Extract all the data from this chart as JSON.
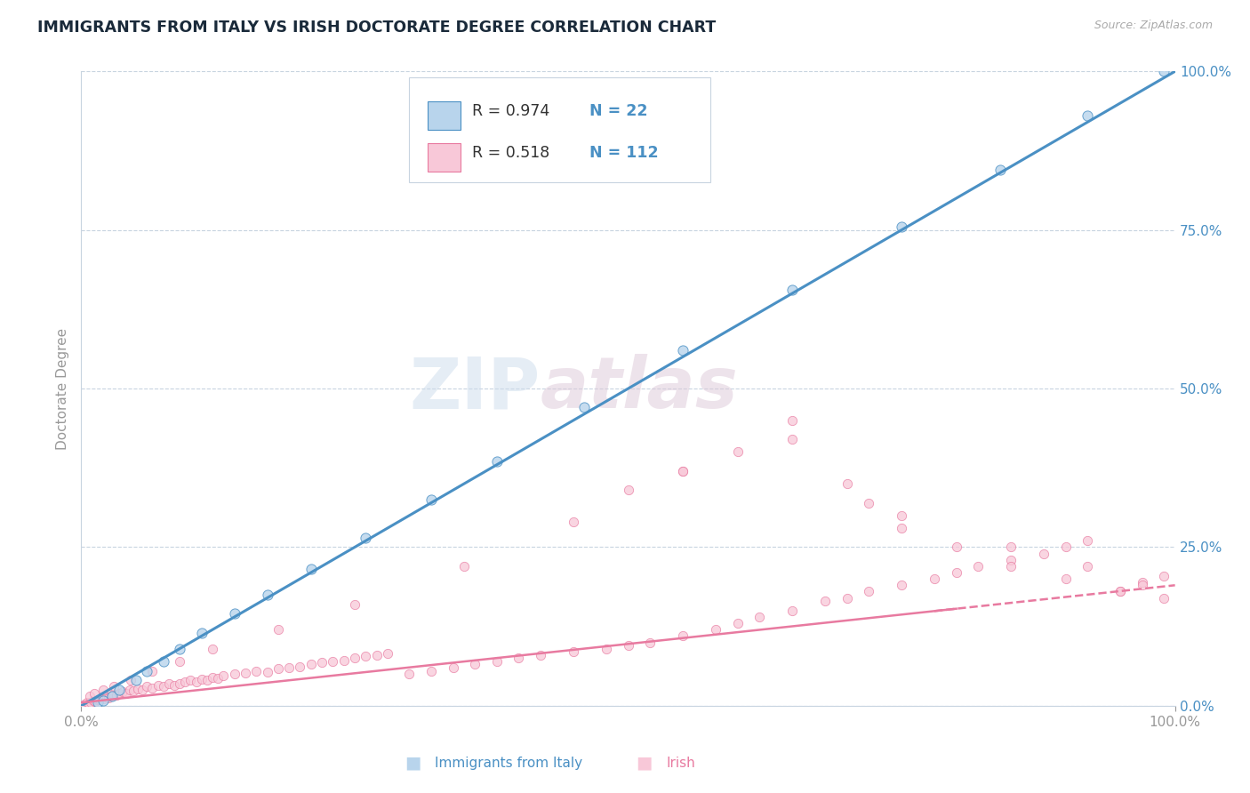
{
  "title": "IMMIGRANTS FROM ITALY VS IRISH DOCTORATE DEGREE CORRELATION CHART",
  "source_text": "Source: ZipAtlas.com",
  "xlabel_left": "Immigrants from Italy",
  "xlabel_right": "Irish",
  "ylabel": "Doctorate Degree",
  "watermark": "ZIPAtlas",
  "blue_R": 0.974,
  "blue_N": 22,
  "pink_R": 0.518,
  "pink_N": 112,
  "blue_color": "#b8d4ec",
  "blue_line_color": "#4a90c4",
  "blue_edge_color": "#4a90c4",
  "pink_color": "#f8c8d8",
  "pink_line_color": "#e87aa0",
  "pink_edge_color": "#e87aa0",
  "blue_scatter_x": [
    1.5,
    2.0,
    2.8,
    3.5,
    5.0,
    6.0,
    7.5,
    9.0,
    11.0,
    14.0,
    17.0,
    21.0,
    26.0,
    32.0,
    38.0,
    46.0,
    55.0,
    65.0,
    75.0,
    84.0,
    92.0,
    99.0
  ],
  "blue_scatter_y": [
    0.5,
    0.8,
    1.5,
    2.5,
    4.0,
    5.5,
    7.0,
    9.0,
    11.5,
    14.5,
    17.5,
    21.5,
    26.5,
    32.5,
    38.5,
    47.0,
    56.0,
    65.5,
    75.5,
    84.5,
    93.0,
    100.0
  ],
  "pink_scatter_x": [
    0.3,
    0.5,
    0.7,
    0.9,
    1.1,
    1.3,
    1.5,
    1.7,
    1.9,
    2.1,
    2.3,
    2.5,
    2.7,
    2.9,
    3.2,
    3.5,
    3.8,
    4.1,
    4.4,
    4.8,
    5.2,
    5.6,
    6.0,
    6.5,
    7.0,
    7.5,
    8.0,
    8.5,
    9.0,
    9.5,
    10.0,
    10.5,
    11.0,
    11.5,
    12.0,
    12.5,
    13.0,
    14.0,
    15.0,
    16.0,
    17.0,
    18.0,
    19.0,
    20.0,
    21.0,
    22.0,
    23.0,
    24.0,
    25.0,
    26.0,
    27.0,
    28.0,
    30.0,
    32.0,
    34.0,
    36.0,
    38.0,
    40.0,
    42.0,
    45.0,
    48.0,
    50.0,
    52.0,
    55.0,
    58.0,
    60.0,
    62.0,
    65.0,
    68.0,
    70.0,
    72.0,
    75.0,
    78.0,
    80.0,
    82.0,
    85.0,
    88.0,
    90.0,
    92.0,
    95.0,
    97.0,
    99.0,
    0.8,
    1.2,
    2.0,
    3.0,
    4.5,
    6.5,
    9.0,
    12.0,
    18.0,
    25.0,
    35.0,
    45.0,
    55.0,
    65.0,
    75.0,
    85.0,
    92.0,
    97.0,
    50.0,
    55.0,
    60.0,
    65.0,
    70.0,
    72.0,
    75.0,
    80.0,
    85.0,
    90.0,
    95.0,
    99.0
  ],
  "pink_scatter_y": [
    0.3,
    0.5,
    0.4,
    0.6,
    0.8,
    0.7,
    1.0,
    0.9,
    1.2,
    1.1,
    1.4,
    1.3,
    1.5,
    1.8,
    1.6,
    2.0,
    2.2,
    1.9,
    2.5,
    2.3,
    2.7,
    2.5,
    3.0,
    2.8,
    3.2,
    3.0,
    3.5,
    3.2,
    3.5,
    3.8,
    4.0,
    3.7,
    4.2,
    4.0,
    4.5,
    4.3,
    4.8,
    5.0,
    5.2,
    5.5,
    5.3,
    5.8,
    6.0,
    6.2,
    6.5,
    6.8,
    7.0,
    7.2,
    7.5,
    7.8,
    8.0,
    8.3,
    5.0,
    5.5,
    6.0,
    6.5,
    7.0,
    7.5,
    8.0,
    8.5,
    9.0,
    9.5,
    10.0,
    11.0,
    12.0,
    13.0,
    14.0,
    15.0,
    16.5,
    17.0,
    18.0,
    19.0,
    20.0,
    21.0,
    22.0,
    23.0,
    24.0,
    25.0,
    26.0,
    18.0,
    19.5,
    20.5,
    1.5,
    2.0,
    2.5,
    3.0,
    4.0,
    5.5,
    7.0,
    9.0,
    12.0,
    16.0,
    22.0,
    29.0,
    37.0,
    45.0,
    30.0,
    25.0,
    22.0,
    19.0,
    34.0,
    37.0,
    40.0,
    42.0,
    35.0,
    32.0,
    28.0,
    25.0,
    22.0,
    20.0,
    18.0,
    17.0
  ],
  "xlim": [
    0,
    100
  ],
  "ylim": [
    0,
    100
  ],
  "ytick_labels_right": [
    "0.0%",
    "25.0%",
    "50.0%",
    "75.0%",
    "100.0%"
  ],
  "ytick_values": [
    0,
    25,
    50,
    75,
    100
  ],
  "xtick_labels": [
    "0.0%",
    "100.0%"
  ],
  "xtick_values": [
    0,
    100
  ],
  "grid_color": "#c8d4e0",
  "background_color": "#ffffff",
  "title_color": "#1a2a3a",
  "axis_color": "#999999",
  "right_tick_color": "#4a90c4",
  "pink_solid_end": 80,
  "pink_dashed_start": 78
}
